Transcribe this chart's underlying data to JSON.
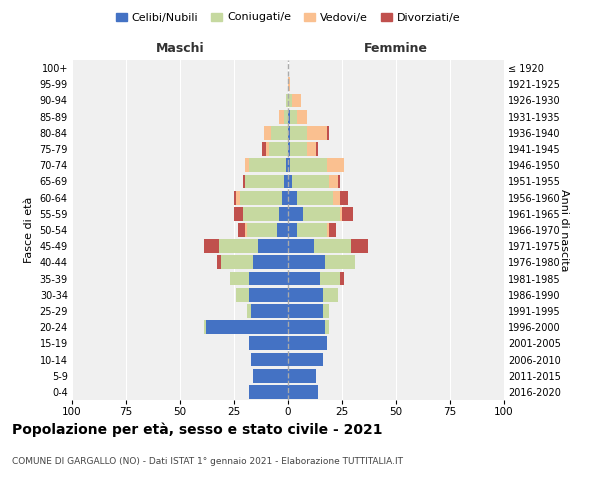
{
  "age_groups": [
    "0-4",
    "5-9",
    "10-14",
    "15-19",
    "20-24",
    "25-29",
    "30-34",
    "35-39",
    "40-44",
    "45-49",
    "50-54",
    "55-59",
    "60-64",
    "65-69",
    "70-74",
    "75-79",
    "80-84",
    "85-89",
    "90-94",
    "95-99",
    "100+"
  ],
  "birth_years": [
    "2016-2020",
    "2011-2015",
    "2006-2010",
    "2001-2005",
    "1996-2000",
    "1991-1995",
    "1986-1990",
    "1981-1985",
    "1976-1980",
    "1971-1975",
    "1966-1970",
    "1961-1965",
    "1956-1960",
    "1951-1955",
    "1946-1950",
    "1941-1945",
    "1936-1940",
    "1931-1935",
    "1926-1930",
    "1921-1925",
    "≤ 1920"
  ],
  "male": {
    "celibi": [
      18,
      16,
      17,
      18,
      38,
      17,
      18,
      18,
      16,
      14,
      5,
      4,
      3,
      2,
      1,
      0,
      0,
      0,
      0,
      0,
      0
    ],
    "coniugati": [
      0,
      0,
      0,
      0,
      1,
      2,
      6,
      9,
      15,
      18,
      14,
      17,
      19,
      18,
      17,
      9,
      8,
      2,
      1,
      0,
      0
    ],
    "vedovi": [
      0,
      0,
      0,
      0,
      0,
      0,
      0,
      0,
      0,
      0,
      1,
      0,
      2,
      0,
      2,
      1,
      3,
      2,
      0,
      0,
      0
    ],
    "divorziati": [
      0,
      0,
      0,
      0,
      0,
      0,
      0,
      0,
      2,
      7,
      3,
      4,
      1,
      1,
      0,
      2,
      0,
      0,
      0,
      0,
      0
    ]
  },
  "female": {
    "nubili": [
      14,
      13,
      16,
      18,
      17,
      16,
      16,
      15,
      17,
      12,
      4,
      7,
      4,
      2,
      1,
      1,
      1,
      1,
      0,
      0,
      0
    ],
    "coniugate": [
      0,
      0,
      0,
      0,
      2,
      3,
      7,
      9,
      14,
      17,
      14,
      17,
      17,
      17,
      17,
      8,
      8,
      3,
      2,
      0,
      0
    ],
    "vedove": [
      0,
      0,
      0,
      0,
      0,
      0,
      0,
      0,
      0,
      0,
      1,
      1,
      3,
      4,
      8,
      4,
      9,
      5,
      4,
      1,
      0
    ],
    "divorziate": [
      0,
      0,
      0,
      0,
      0,
      0,
      0,
      2,
      0,
      8,
      3,
      5,
      4,
      1,
      0,
      1,
      1,
      0,
      0,
      0,
      0
    ]
  },
  "colors": {
    "celibi": "#4472C4",
    "coniugati": "#C6D9A0",
    "vedovi": "#FAC090",
    "divorziati": "#C0504D"
  },
  "xlim": 100,
  "xtick_step": 25,
  "title": "Popolazione per età, sesso e stato civile - 2021",
  "subtitle": "COMUNE DI GARGALLO (NO) - Dati ISTAT 1° gennaio 2021 - Elaborazione TUTTITALIA.IT",
  "label_maschi": "Maschi",
  "label_femmine": "Femmine",
  "ylabel_left": "Fasce di età",
  "ylabel_right": "Anni di nascita",
  "legend_labels": [
    "Celibi/Nubili",
    "Coniugati/e",
    "Vedovi/e",
    "Divorziati/e"
  ],
  "bg_color": "#ffffff",
  "plot_bg": "#f0f0f0",
  "grid_color": "#ffffff"
}
